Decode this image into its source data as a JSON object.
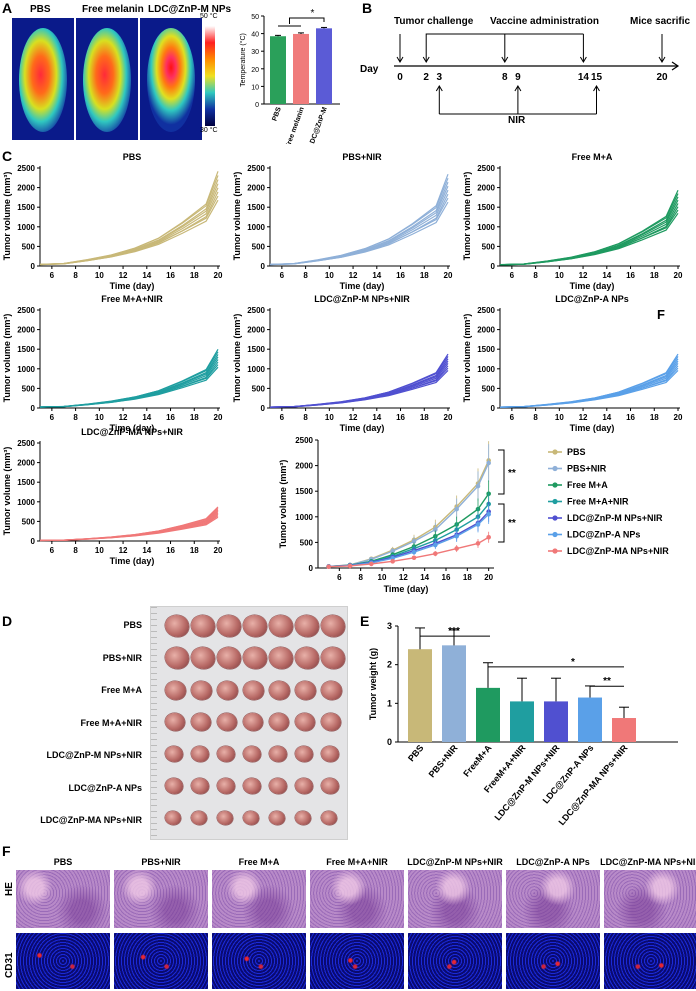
{
  "panels": {
    "A": "A",
    "B": "B",
    "C": "C",
    "D": "D",
    "E": "E",
    "F": "F",
    "Finset": "F"
  },
  "panelA": {
    "labels": [
      "PBS",
      "Free melanin",
      "LDC@ZnP-M NPs"
    ],
    "scale_max": "50 °C",
    "scale_min": "30 °C",
    "bar_chart": {
      "type": "bar",
      "ylabel": "Temperature (°C)",
      "categories": [
        "PBS",
        "Free melanin",
        "LDC@ZnP-M"
      ],
      "values": [
        38.5,
        39.8,
        43.0
      ],
      "errors": [
        0.5,
        0.6,
        0.5
      ],
      "ylim": [
        0,
        50
      ],
      "yticks": [
        "0",
        "10",
        "20",
        "30",
        "40",
        "50"
      ],
      "colors": [
        "#2aa05a",
        "#f07b7b",
        "#5b5bd6"
      ],
      "significance": "*"
    }
  },
  "panelB": {
    "day_label": "Day",
    "tumor_challenge": "Tumor challenge",
    "vaccine_admin": "Vaccine administration",
    "mice_sacrifice": "Mice sacrifice",
    "nir": "NIR",
    "days": [
      {
        "d": "0"
      },
      {
        "d": "2"
      },
      {
        "d": "3"
      },
      {
        "d": "8"
      },
      {
        "d": "9"
      },
      {
        "d": "14"
      },
      {
        "d": "15"
      },
      {
        "d": "20"
      }
    ]
  },
  "panelC": {
    "xlabel": "Time (day)",
    "ylabel": "Tumor volume (mm³)",
    "xticks": [
      "6",
      "8",
      "10",
      "12",
      "14",
      "16",
      "18",
      "20"
    ],
    "yticks": [
      "0",
      "500",
      "1000",
      "1500",
      "2000",
      "2500"
    ],
    "plots": [
      {
        "title": "PBS",
        "color": "#c8b878",
        "scale": 1.0
      },
      {
        "title": "PBS+NIR",
        "color": "#8fb0d8",
        "scale": 0.97
      },
      {
        "title": "Free M+A",
        "color": "#1f9a60",
        "scale": 0.8
      },
      {
        "title": "Free M+A+NIR",
        "color": "#1f9ea0",
        "scale": 0.62
      },
      {
        "title": "LDC@ZnP-M NPs+NIR",
        "color": "#5050d0",
        "scale": 0.57
      },
      {
        "title": "LDC@ZnP-A NPs",
        "color": "#5aa0e8",
        "scale": 0.57
      },
      {
        "title": "LDC@ZnP-MA NPs+NIR",
        "color": "#f07878",
        "scale": 0.36
      }
    ]
  },
  "chart_data": {
    "type": "line",
    "title": "",
    "xlabel": "Time (day)",
    "ylabel": "Tumor volume (mm³)",
    "x": [
      5,
      7,
      9,
      11,
      13,
      15,
      17,
      19,
      20
    ],
    "ylim": [
      0,
      2500
    ],
    "yticks": [
      "0",
      "500",
      "1000",
      "1500",
      "2000",
      "2500"
    ],
    "xticks": [
      "6",
      "8",
      "10",
      "12",
      "14",
      "16",
      "18",
      "20"
    ],
    "significance": [
      "**",
      "**"
    ],
    "series": [
      {
        "name": "PBS",
        "color": "#c8b878",
        "values": [
          30,
          60,
          180,
          350,
          550,
          800,
          1200,
          1650,
          2100
        ]
      },
      {
        "name": "PBS+NIR",
        "color": "#8fb0d8",
        "values": [
          30,
          60,
          170,
          330,
          520,
          750,
          1150,
          1600,
          2050
        ]
      },
      {
        "name": "Free M+A",
        "color": "#1f9a60",
        "values": [
          30,
          55,
          130,
          260,
          420,
          620,
          850,
          1150,
          1450
        ]
      },
      {
        "name": "Free M+A+NIR",
        "color": "#1f9ea0",
        "values": [
          30,
          50,
          120,
          230,
          380,
          540,
          750,
          1000,
          1250
        ]
      },
      {
        "name": "LDC@ZnP-M NPs+NIR",
        "color": "#5050d0",
        "values": [
          30,
          50,
          110,
          210,
          340,
          480,
          650,
          880,
          1100
        ]
      },
      {
        "name": "LDC@ZnP-A NPs",
        "color": "#5aa0e8",
        "values": [
          30,
          45,
          100,
          190,
          310,
          450,
          620,
          850,
          1050
        ]
      },
      {
        "name": "LDC@ZnP-MA NPs+NIR",
        "color": "#f07878",
        "values": [
          25,
          40,
          80,
          130,
          200,
          280,
          380,
          480,
          600
        ]
      }
    ]
  },
  "panelD": {
    "rows": [
      "PBS",
      "PBS+NIR",
      "Free M+A",
      "Free M+A+NIR",
      "LDC@ZnP-M NPs+NIR",
      "LDC@ZnP-A NPs",
      "LDC@ZnP-MA NPs+NIR"
    ]
  },
  "panelE": {
    "type": "bar",
    "ylabel": "Tumor weight (g)",
    "yticks": [
      "0",
      "1",
      "2",
      "3"
    ],
    "ylim": [
      0,
      3
    ],
    "categories": [
      "PBS",
      "PBS+NIR",
      "FreeM+A",
      "FreeM+A+NIR",
      "LDC@ZnP-M NPs+NIR",
      "LDC@ZnP-A NPs",
      "LDC@ZnP-MA NPs+NIR"
    ],
    "values": [
      2.4,
      2.5,
      1.4,
      1.05,
      1.05,
      1.15,
      0.62
    ],
    "errors": [
      0.55,
      0.4,
      0.65,
      0.6,
      0.6,
      0.3,
      0.28
    ],
    "colors": [
      "#c8b878",
      "#8fb0d8",
      "#1f9a60",
      "#1f9ea0",
      "#5050d0",
      "#5aa0e8",
      "#f07878"
    ],
    "significance": [
      "***",
      "*",
      "**"
    ]
  },
  "panelF": {
    "columns": [
      "PBS",
      "PBS+NIR",
      "Free M+A",
      "Free M+A+NIR",
      "LDC@ZnP-M NPs+NIR",
      "LDC@ZnP-A NPs",
      "LDC@ZnP-MA NPs+NIR"
    ],
    "row_he": "HE",
    "row_cd31": "CD31"
  }
}
